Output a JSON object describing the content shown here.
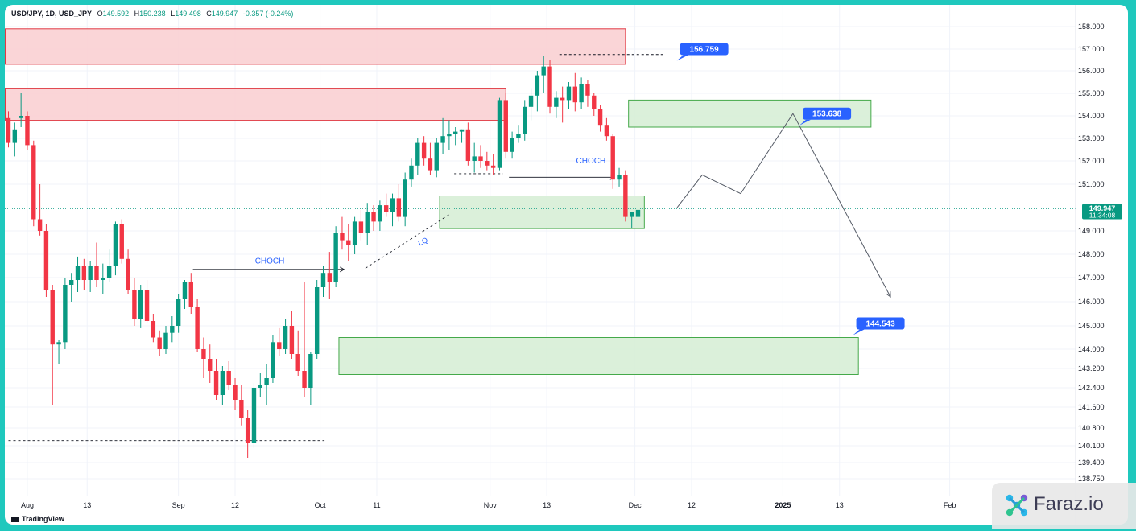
{
  "header": {
    "symbol": "USD/JPY, 1D, USD_JPY",
    "open_label": "O",
    "open": "149.592",
    "high_label": "H",
    "high": "150.238",
    "low_label": "L",
    "low": "149.498",
    "close_label": "C",
    "close": "149.947",
    "change": "-0.357 (-0.24%)"
  },
  "watermark": {
    "tradingview": "TradingView",
    "brand": "Faraz.io"
  },
  "colors": {
    "up": "#089981",
    "down": "#f23645",
    "supply_fill": "#f9d0d3",
    "supply_border": "#e03a44",
    "demand_fill": "#d7eed6",
    "demand_border": "#45a94a",
    "callout": "#2962ff",
    "frame": "#1fc8bd"
  },
  "chart_data": {
    "type": "candlestick",
    "symbol": "USD/JPY",
    "interval": "1D",
    "y_axis": {
      "ticks": [
        "158.000",
        "157.000",
        "156.000",
        "155.000",
        "154.000",
        "153.000",
        "152.000",
        "151.000",
        "149.000",
        "148.000",
        "147.000",
        "146.000",
        "145.000",
        "144.000",
        "143.200",
        "142.400",
        "141.600",
        "140.800",
        "140.100",
        "139.400",
        "138.750"
      ]
    },
    "x_axis": {
      "ticks": [
        "Aug",
        "13",
        "Sep",
        "12",
        "Oct",
        "11",
        "Nov",
        "13",
        "Dec",
        "12",
        "2025",
        "13",
        "Feb"
      ]
    },
    "current_price": "149.947",
    "countdown": "11:34:08",
    "candles": [
      [
        153.9,
        154.2,
        152.6,
        152.8
      ],
      [
        152.8,
        153.7,
        152.2,
        153.4
      ],
      [
        153.9,
        155.0,
        153.5,
        154.0
      ],
      [
        154.0,
        154.2,
        152.5,
        152.7
      ],
      [
        152.7,
        152.9,
        149.2,
        149.5
      ],
      [
        149.5,
        151.0,
        148.8,
        149.0
      ],
      [
        149.0,
        149.3,
        146.2,
        146.5
      ],
      [
        146.5,
        146.7,
        141.7,
        144.2
      ],
      [
        144.2,
        144.4,
        143.4,
        144.3
      ],
      [
        144.3,
        147.0,
        144.0,
        146.7
      ],
      [
        146.7,
        147.2,
        146.0,
        146.9
      ],
      [
        146.9,
        147.9,
        146.4,
        147.5
      ],
      [
        147.5,
        147.8,
        146.5,
        146.9
      ],
      [
        146.9,
        147.7,
        146.4,
        147.5
      ],
      [
        147.5,
        148.5,
        146.6,
        146.9
      ],
      [
        146.9,
        147.6,
        146.3,
        147.0
      ],
      [
        147.0,
        148.2,
        146.8,
        147.5
      ],
      [
        147.5,
        149.4,
        147.1,
        149.3
      ],
      [
        149.3,
        149.5,
        147.6,
        147.8
      ],
      [
        147.8,
        148.2,
        146.3,
        146.5
      ],
      [
        146.5,
        147.0,
        145.0,
        145.3
      ],
      [
        145.3,
        146.7,
        144.9,
        146.5
      ],
      [
        146.5,
        146.9,
        145.1,
        145.2
      ],
      [
        145.2,
        145.5,
        144.3,
        144.5
      ],
      [
        144.5,
        144.8,
        143.7,
        144.0
      ],
      [
        144.0,
        145.0,
        143.8,
        144.7
      ],
      [
        144.7,
        145.4,
        144.3,
        145.0
      ],
      [
        145.0,
        146.3,
        144.7,
        146.1
      ],
      [
        146.1,
        146.9,
        145.7,
        146.8
      ],
      [
        146.8,
        147.2,
        145.5,
        145.8
      ],
      [
        145.8,
        146.1,
        143.9,
        144.0
      ],
      [
        144.0,
        144.5,
        142.8,
        143.6
      ],
      [
        143.6,
        144.2,
        142.6,
        143.1
      ],
      [
        143.1,
        143.6,
        141.9,
        142.1
      ],
      [
        142.1,
        143.3,
        141.7,
        143.1
      ],
      [
        143.1,
        143.5,
        142.3,
        142.5
      ],
      [
        142.5,
        142.8,
        141.5,
        141.9
      ],
      [
        141.9,
        142.5,
        140.9,
        141.2
      ],
      [
        141.2,
        141.5,
        139.6,
        140.2
      ],
      [
        140.2,
        142.6,
        140.0,
        142.4
      ],
      [
        142.4,
        143.0,
        142.0,
        142.5
      ],
      [
        142.5,
        143.4,
        141.7,
        142.8
      ],
      [
        142.8,
        144.6,
        142.6,
        144.3
      ],
      [
        144.3,
        144.9,
        143.7,
        144.0
      ],
      [
        144.0,
        145.3,
        143.8,
        145.0
      ],
      [
        145.0,
        145.6,
        143.6,
        143.8
      ],
      [
        143.8,
        144.8,
        142.9,
        143.1
      ],
      [
        143.1,
        146.8,
        142.0,
        142.4
      ],
      [
        142.4,
        143.9,
        141.7,
        143.8
      ],
      [
        143.8,
        146.9,
        143.6,
        146.6
      ],
      [
        146.6,
        147.5,
        146.2,
        147.2
      ],
      [
        147.2,
        148.1,
        146.1,
        146.8
      ],
      [
        146.8,
        149.2,
        146.6,
        148.9
      ],
      [
        148.9,
        149.6,
        148.2,
        148.6
      ],
      [
        148.6,
        149.3,
        147.7,
        148.4
      ],
      [
        148.4,
        149.6,
        148.0,
        149.4
      ],
      [
        149.4,
        149.9,
        148.6,
        148.9
      ],
      [
        148.9,
        150.2,
        148.4,
        149.8
      ],
      [
        149.8,
        150.1,
        149.0,
        149.4
      ],
      [
        149.4,
        150.3,
        149.0,
        150.1
      ],
      [
        150.1,
        150.6,
        149.6,
        149.8
      ],
      [
        149.8,
        150.6,
        149.2,
        150.4
      ],
      [
        150.4,
        151.0,
        149.4,
        149.6
      ],
      [
        149.6,
        151.5,
        149.2,
        151.2
      ],
      [
        151.2,
        152.1,
        150.9,
        151.8
      ],
      [
        151.8,
        153.0,
        151.4,
        152.8
      ],
      [
        152.8,
        153.1,
        151.8,
        152.1
      ],
      [
        152.1,
        152.8,
        151.4,
        151.6
      ],
      [
        151.6,
        153.0,
        151.3,
        152.8
      ],
      [
        152.8,
        153.9,
        152.3,
        153.1
      ],
      [
        153.1,
        153.8,
        152.5,
        153.2
      ],
      [
        153.2,
        153.5,
        152.7,
        153.3
      ],
      [
        153.3,
        153.4,
        152.8,
        153.4
      ],
      [
        153.4,
        153.7,
        151.8,
        152.0
      ],
      [
        152.0,
        152.8,
        151.5,
        152.2
      ],
      [
        152.2,
        152.7,
        151.7,
        152.0
      ],
      [
        152.0,
        152.4,
        151.6,
        151.8
      ],
      [
        151.8,
        152.3,
        151.4,
        151.7
      ],
      [
        151.7,
        154.8,
        151.6,
        154.7
      ],
      [
        154.7,
        155.0,
        152.1,
        152.4
      ],
      [
        152.4,
        153.3,
        152.1,
        153.0
      ],
      [
        153.0,
        153.6,
        152.8,
        153.2
      ],
      [
        153.2,
        154.7,
        152.9,
        154.4
      ],
      [
        154.4,
        155.2,
        153.8,
        154.9
      ],
      [
        154.9,
        156.0,
        154.2,
        155.8
      ],
      [
        155.8,
        156.7,
        155.0,
        156.2
      ],
      [
        156.2,
        156.5,
        154.1,
        154.4
      ],
      [
        154.4,
        155.1,
        153.9,
        154.8
      ],
      [
        154.8,
        155.3,
        153.7,
        154.7
      ],
      [
        154.7,
        155.5,
        154.3,
        155.3
      ],
      [
        155.3,
        155.9,
        154.2,
        154.6
      ],
      [
        154.6,
        155.7,
        154.3,
        155.4
      ],
      [
        155.4,
        155.6,
        154.4,
        154.9
      ],
      [
        154.9,
        155.0,
        154.0,
        154.3
      ],
      [
        154.3,
        154.5,
        153.3,
        153.6
      ],
      [
        153.6,
        153.9,
        152.9,
        153.1
      ],
      [
        153.1,
        153.2,
        150.8,
        151.2
      ],
      [
        151.2,
        151.7,
        150.9,
        151.4
      ],
      [
        151.4,
        151.6,
        149.4,
        149.6
      ],
      [
        149.6,
        149.8,
        149.1,
        149.8
      ],
      [
        149.6,
        150.2,
        149.5,
        149.9
      ]
    ],
    "zones": [
      {
        "kind": "supply",
        "top": 157.9,
        "bottom": 156.3,
        "x0": 0,
        "x1": 98
      },
      {
        "kind": "supply",
        "top": 155.2,
        "bottom": 153.8,
        "x0": 0,
        "x1": 79
      },
      {
        "kind": "demand",
        "top": 154.7,
        "bottom": 153.5,
        "x0": 99,
        "x1": 137
      },
      {
        "kind": "demand",
        "top": 150.5,
        "bottom": 149.1,
        "x0": 69,
        "x1": 101
      },
      {
        "kind": "demand",
        "top": 144.5,
        "bottom": 142.95,
        "x0": 53,
        "x1": 135
      }
    ],
    "annotations": [
      {
        "type": "label",
        "text": "CHOCH",
        "x": 41.5,
        "y": 147.6
      },
      {
        "type": "label",
        "text": "CHOCH",
        "x": 92.5,
        "y": 151.9
      },
      {
        "type": "label",
        "text": "LQ",
        "x": 66.0,
        "y": 148.45
      },
      {
        "type": "callout",
        "text": "156.759",
        "x": 110.5,
        "y": 157.0
      },
      {
        "type": "callout",
        "text": "153.638",
        "x": 130.0,
        "y": 154.1
      },
      {
        "type": "callout",
        "text": "144.543",
        "x": 138.5,
        "y": 145.1
      }
    ],
    "projection": [
      [
        106.2,
        150.0
      ],
      [
        110.2,
        151.4
      ],
      [
        116.3,
        150.6
      ],
      [
        124.6,
        154.1
      ],
      [
        140.1,
        146.2
      ]
    ]
  }
}
